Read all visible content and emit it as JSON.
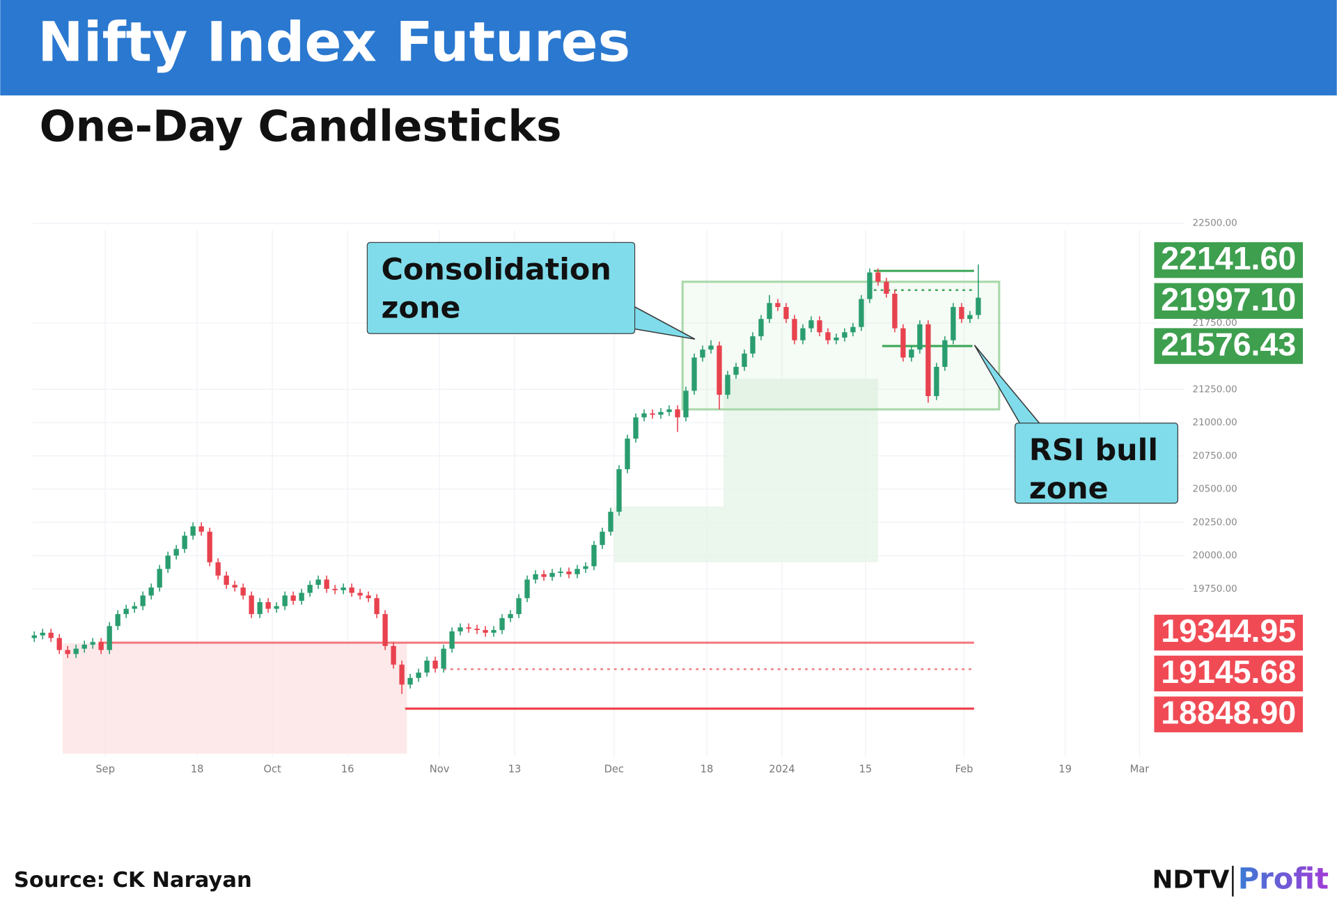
{
  "header": {
    "title": "Nifty Index Futures",
    "subtitle": "One-Day Candlesticks"
  },
  "chart_data": {
    "type": "candlestick",
    "xlim": [
      -0.2,
      137.75
    ],
    "ylim": [
      18350,
      22500
    ],
    "xticks": [
      {
        "value": 8.5,
        "label": "Sep"
      },
      {
        "value": 19.5,
        "label": "18"
      },
      {
        "value": 28.5,
        "label": "Oct"
      },
      {
        "value": 37.5,
        "label": "16"
      },
      {
        "value": 48.5,
        "label": "Nov"
      },
      {
        "value": 57.5,
        "label": "13"
      },
      {
        "value": 69.4,
        "label": "Dec"
      },
      {
        "value": 80.5,
        "label": "18"
      },
      {
        "value": 89.5,
        "label": "2024"
      },
      {
        "value": 99.5,
        "label": "15"
      },
      {
        "value": 111.3,
        "label": "Feb"
      },
      {
        "value": 123.4,
        "label": "19"
      },
      {
        "value": 132.3,
        "label": "Mar"
      }
    ],
    "yticks": [
      {
        "value": 22500,
        "label": "22500.00"
      },
      {
        "value": 21750,
        "label": "21750.00"
      },
      {
        "value": 21250,
        "label": "21250.00"
      },
      {
        "value": 21000,
        "label": "21000.00"
      },
      {
        "value": 20750,
        "label": "20750.00"
      },
      {
        "value": 20500,
        "label": "20500.00"
      },
      {
        "value": 20250,
        "label": "20250.00"
      },
      {
        "value": 20000,
        "label": "20000.00"
      },
      {
        "value": 19750,
        "label": "19750.00"
      }
    ],
    "grid": true,
    "up_color": "#2a9d6f",
    "down_color": "#e8424f",
    "open": [
      19380,
      19400,
      19420,
      19380,
      19290,
      19260,
      19300,
      19330,
      19350,
      19290,
      19470,
      19560,
      19600,
      19620,
      19700,
      19760,
      19900,
      20000,
      20050,
      20150,
      20220,
      20180,
      19950,
      19850,
      19780,
      19760,
      19700,
      19560,
      19650,
      19600,
      19620,
      19700,
      19660,
      19720,
      19780,
      19820,
      19750,
      19740,
      19760,
      19720,
      19700,
      19680,
      19560,
      19320,
      19180,
      19030,
      19080,
      19120,
      19210,
      19150,
      19300,
      19430,
      19460,
      19450,
      19440,
      19420,
      19440,
      19530,
      19560,
      19680,
      19820,
      19860,
      19840,
      19870,
      19880,
      19860,
      19900,
      19920,
      20080,
      20180,
      20330,
      20650,
      20880,
      21040,
      21070,
      21060,
      21080,
      21100,
      21040,
      21240,
      21490,
      21550,
      21580,
      21210,
      21360,
      21420,
      21520,
      21650,
      21780,
      21900,
      21870,
      21780,
      21620,
      21710,
      21770,
      21680,
      21620,
      21640,
      21680,
      21720,
      21930,
      22130,
      22060,
      21970,
      21710,
      21490,
      21550,
      21740,
      21200,
      21420,
      21620,
      21870,
      21780,
      21810
    ],
    "high": [
      19430,
      19450,
      19450,
      19410,
      19320,
      19330,
      19360,
      19380,
      19380,
      19500,
      19590,
      19630,
      19650,
      19730,
      19790,
      19930,
      20030,
      20080,
      20180,
      20250,
      20250,
      20210,
      19980,
      19880,
      19810,
      19790,
      19730,
      19680,
      19680,
      19650,
      19730,
      19730,
      19750,
      19810,
      19850,
      19850,
      19780,
      19790,
      19790,
      19750,
      19730,
      19710,
      19590,
      19350,
      19210,
      19110,
      19150,
      19240,
      19240,
      19330,
      19460,
      19490,
      19490,
      19480,
      19470,
      19470,
      19560,
      19590,
      19710,
      19850,
      19890,
      19890,
      19900,
      19910,
      19910,
      19930,
      19950,
      20110,
      20210,
      20360,
      20680,
      20910,
      21070,
      21100,
      21100,
      21110,
      21130,
      21130,
      21270,
      21520,
      21580,
      21620,
      21610,
      21390,
      21450,
      21550,
      21680,
      21810,
      21960,
      21930,
      21900,
      21810,
      21740,
      21800,
      21800,
      21710,
      21670,
      21710,
      21750,
      21960,
      22160,
      22160,
      22090,
      22000,
      21740,
      21580,
      21770,
      21770,
      21450,
      21650,
      21900,
      21900,
      21840,
      22190
    ],
    "low": [
      19350,
      19370,
      19350,
      19260,
      19230,
      19230,
      19270,
      19300,
      19260,
      19260,
      19440,
      19530,
      19570,
      19590,
      19670,
      19730,
      19870,
      19970,
      20020,
      20120,
      20150,
      19920,
      19820,
      19750,
      19730,
      19670,
      19530,
      19530,
      19570,
      19570,
      19590,
      19630,
      19630,
      19690,
      19750,
      19720,
      19710,
      19710,
      19690,
      19670,
      19650,
      19530,
      19290,
      19150,
      18960,
      19000,
      19050,
      19090,
      19120,
      19120,
      19270,
      19400,
      19420,
      19410,
      19390,
      19390,
      19410,
      19500,
      19530,
      19650,
      19790,
      19810,
      19810,
      19840,
      19830,
      19830,
      19870,
      19890,
      20050,
      20150,
      20300,
      20620,
      20850,
      21010,
      21030,
      21030,
      21050,
      20930,
      21010,
      21210,
      21460,
      21520,
      21100,
      21180,
      21330,
      21390,
      21490,
      21620,
      21750,
      21840,
      21750,
      21590,
      21590,
      21680,
      21650,
      21590,
      21590,
      21610,
      21650,
      21690,
      21900,
      22030,
      21940,
      21680,
      21460,
      21460,
      21520,
      21150,
      21170,
      21390,
      21590,
      21750,
      21750,
      21780
    ],
    "close": [
      19400,
      19420,
      19380,
      19290,
      19260,
      19300,
      19330,
      19350,
      19290,
      19470,
      19560,
      19600,
      19620,
      19700,
      19760,
      19900,
      20000,
      20050,
      20150,
      20220,
      20180,
      19950,
      19850,
      19780,
      19760,
      19700,
      19560,
      19650,
      19600,
      19620,
      19700,
      19660,
      19720,
      19780,
      19820,
      19750,
      19740,
      19760,
      19720,
      19700,
      19680,
      19560,
      19320,
      19180,
      19030,
      19080,
      19120,
      19210,
      19150,
      19300,
      19430,
      19460,
      19450,
      19440,
      19420,
      19440,
      19530,
      19560,
      19680,
      19820,
      19860,
      19840,
      19870,
      19880,
      19860,
      19900,
      19920,
      20080,
      20180,
      20330,
      20650,
      20880,
      21040,
      21070,
      21060,
      21080,
      21100,
      21040,
      21240,
      21490,
      21550,
      21580,
      21210,
      21360,
      21420,
      21520,
      21650,
      21780,
      21900,
      21870,
      21780,
      21620,
      21710,
      21770,
      21680,
      21620,
      21640,
      21680,
      21720,
      21930,
      22130,
      22060,
      21970,
      21710,
      21490,
      21550,
      21740,
      21200,
      21420,
      21620,
      21870,
      21780,
      21810,
      21940
    ],
    "levels": [
      {
        "value": 22141.6,
        "label": "22141.60",
        "from": 100.5,
        "to": 112.5,
        "color": "#3aa655",
        "dashed": false
      },
      {
        "value": 21997.1,
        "label": "21997.10",
        "from": 100.5,
        "to": 112.5,
        "color": "#3aa655",
        "dashed": true
      },
      {
        "value": 21576.43,
        "from": 101.5,
        "to": 112.3,
        "color": "#3aa655",
        "dashed": false
      },
      {
        "value": 19344.95,
        "from": 7.7,
        "to": 112.5,
        "color": "#f27a80",
        "dashed": false
      },
      {
        "value": 19145.68,
        "from": 49,
        "to": 112.5,
        "color": "#f27a80",
        "dashed": true
      },
      {
        "value": 18848.9,
        "label": "18848.90",
        "from": 44.4,
        "to": 112.5,
        "color": "#ee3b45",
        "dashed": false
      }
    ],
    "zones": [
      {
        "x_range": [
          3.4,
          44.6
        ],
        "y_range": [
          18510,
          19340
        ],
        "color": "#fde3e3"
      },
      {
        "x_range": [
          69.4,
          82.5
        ],
        "y_range": [
          19950,
          20370
        ],
        "color": "#e6f4e8"
      },
      {
        "x_range": [
          82.5,
          101
        ],
        "y_range": [
          19950,
          21330
        ],
        "color": "#e6f4e8"
      }
    ],
    "consolidation_box": {
      "x_range": [
        77.6,
        115.5
      ],
      "y_range": [
        21100,
        22060
      ],
      "color": "#a8d8a8"
    },
    "annotations": [
      {
        "text": "Consolidation zone"
      },
      {
        "text": "RSI bull zone"
      }
    ]
  },
  "footer": {
    "source": "Source: CK Narayan",
    "logo": {
      "brand": "NDTV",
      "product": "Profit"
    }
  }
}
